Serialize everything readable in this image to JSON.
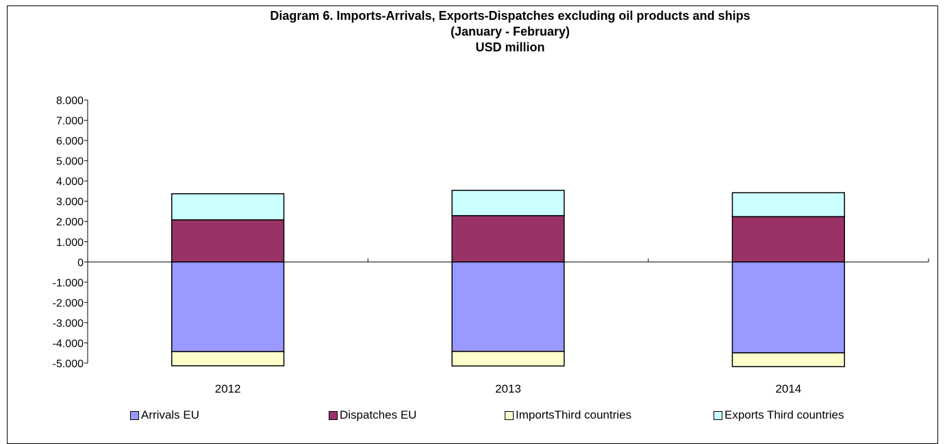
{
  "chart_data": {
    "type": "bar",
    "stacked": true,
    "title_lines": [
      "Diagram 6.  Imports-Arrivals, Exports-Dispatches excluding oil products and ships",
      "(January - February)",
      "USD million"
    ],
    "categories": [
      "2012",
      "2013",
      "2014"
    ],
    "series": [
      {
        "name": "Arrivals EU",
        "color": "#9999FF",
        "values": [
          -4430,
          -4420,
          -4490
        ]
      },
      {
        "name": "Dispatches EU",
        "color": "#993366",
        "values": [
          2080,
          2290,
          2240
        ]
      },
      {
        "name": "ImportsThird countries",
        "color": "#FFFFCC",
        "values": [
          -700,
          -720,
          -700
        ]
      },
      {
        "name": "Exports Third countries",
        "color": "#CCFFFF",
        "values": [
          1290,
          1250,
          1180
        ]
      }
    ],
    "ylim": [
      -5000,
      8000
    ],
    "yticks": [
      8000,
      7000,
      6000,
      5000,
      4000,
      3000,
      2000,
      1000,
      0,
      -1000,
      -2000,
      -3000,
      -4000,
      -5000
    ],
    "ytick_labels": [
      "8.000",
      "7.000",
      "6.000",
      "5.000",
      "4.000",
      "3.000",
      "2.000",
      "1.000",
      "0",
      "-1.000",
      "-2.000",
      "-3.000",
      "-4.000",
      "-5.000"
    ],
    "grid": false,
    "legend_position": "bottom"
  }
}
